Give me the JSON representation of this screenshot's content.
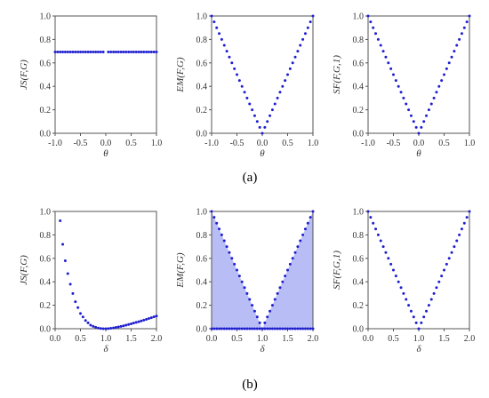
{
  "figure": {
    "subfigure_labels": [
      "(a)",
      "(b)"
    ]
  },
  "colors": {
    "points": "#1f1fd0",
    "fill": "#b9bdf5",
    "axis": "#555555"
  },
  "chart_data": [
    {
      "type": "scatter",
      "row": "a",
      "title": "",
      "xlabel": "θ",
      "ylabel": "JS(F,G)",
      "xlim": [
        -1.0,
        1.0
      ],
      "ylim": [
        0.0,
        1.0
      ],
      "xticks": [
        "-1.0",
        "-0.5",
        "0.0",
        "0.5",
        "1.0"
      ],
      "yticks": [
        "0.0",
        "0.2",
        "0.4",
        "0.6",
        "0.8",
        "1.0"
      ],
      "series": [
        {
          "x": [
            -1.0,
            -0.95,
            -0.9,
            -0.85,
            -0.8,
            -0.75,
            -0.7,
            -0.65,
            -0.6,
            -0.55,
            -0.5,
            -0.45,
            -0.4,
            -0.35,
            -0.3,
            -0.25,
            -0.2,
            -0.15,
            -0.1,
            -0.05,
            0.05,
            0.1,
            0.15,
            0.2,
            0.25,
            0.3,
            0.35,
            0.4,
            0.45,
            0.5,
            0.55,
            0.6,
            0.65,
            0.7,
            0.75,
            0.8,
            0.85,
            0.9,
            0.95,
            1.0
          ],
          "y": [
            0.693,
            0.693,
            0.693,
            0.693,
            0.693,
            0.693,
            0.693,
            0.693,
            0.693,
            0.693,
            0.693,
            0.693,
            0.693,
            0.693,
            0.693,
            0.693,
            0.693,
            0.693,
            0.693,
            0.693,
            0.693,
            0.693,
            0.693,
            0.693,
            0.693,
            0.693,
            0.693,
            0.693,
            0.693,
            0.693,
            0.693,
            0.693,
            0.693,
            0.693,
            0.693,
            0.693,
            0.693,
            0.693,
            0.693,
            0.693
          ]
        }
      ]
    },
    {
      "type": "scatter",
      "row": "a",
      "title": "",
      "xlabel": "θ",
      "ylabel": "EM(F,G)",
      "xlim": [
        -1.0,
        1.0
      ],
      "ylim": [
        0.0,
        1.0
      ],
      "xticks": [
        "-1.0",
        "-0.5",
        "0.0",
        "0.5",
        "1.0"
      ],
      "yticks": [
        "0.0",
        "0.2",
        "0.4",
        "0.6",
        "0.8",
        "1.0"
      ],
      "series": [
        {
          "x": [
            -1.0,
            -0.95,
            -0.9,
            -0.85,
            -0.8,
            -0.75,
            -0.7,
            -0.65,
            -0.6,
            -0.55,
            -0.5,
            -0.45,
            -0.4,
            -0.35,
            -0.3,
            -0.25,
            -0.2,
            -0.15,
            -0.1,
            -0.05,
            0.0,
            0.05,
            0.1,
            0.15,
            0.2,
            0.25,
            0.3,
            0.35,
            0.4,
            0.45,
            0.5,
            0.55,
            0.6,
            0.65,
            0.7,
            0.75,
            0.8,
            0.85,
            0.9,
            0.95,
            1.0
          ],
          "y": [
            1.0,
            0.95,
            0.9,
            0.85,
            0.8,
            0.75,
            0.7,
            0.65,
            0.6,
            0.55,
            0.5,
            0.45,
            0.4,
            0.35,
            0.3,
            0.25,
            0.2,
            0.15,
            0.1,
            0.05,
            0.0,
            0.05,
            0.1,
            0.15,
            0.2,
            0.25,
            0.3,
            0.35,
            0.4,
            0.45,
            0.5,
            0.55,
            0.6,
            0.65,
            0.7,
            0.75,
            0.8,
            0.85,
            0.9,
            0.95,
            1.0
          ]
        }
      ]
    },
    {
      "type": "scatter",
      "row": "a",
      "title": "",
      "xlabel": "θ",
      "ylabel": "SF(F,G,1)",
      "xlim": [
        -1.0,
        1.0
      ],
      "ylim": [
        0.0,
        1.0
      ],
      "xticks": [
        "-1.0",
        "-0.5",
        "0.0",
        "0.5",
        "1.0"
      ],
      "yticks": [
        "0.0",
        "0.2",
        "0.4",
        "0.6",
        "0.8",
        "1.0"
      ],
      "series": [
        {
          "x": [
            -1.0,
            -0.95,
            -0.9,
            -0.85,
            -0.8,
            -0.75,
            -0.7,
            -0.65,
            -0.6,
            -0.55,
            -0.5,
            -0.45,
            -0.4,
            -0.35,
            -0.3,
            -0.25,
            -0.2,
            -0.15,
            -0.1,
            -0.05,
            0.0,
            0.05,
            0.1,
            0.15,
            0.2,
            0.25,
            0.3,
            0.35,
            0.4,
            0.45,
            0.5,
            0.55,
            0.6,
            0.65,
            0.7,
            0.75,
            0.8,
            0.85,
            0.9,
            0.95,
            1.0
          ],
          "y": [
            1.0,
            0.95,
            0.9,
            0.85,
            0.8,
            0.75,
            0.7,
            0.65,
            0.6,
            0.55,
            0.5,
            0.45,
            0.4,
            0.35,
            0.3,
            0.25,
            0.2,
            0.15,
            0.1,
            0.05,
            0.0,
            0.05,
            0.1,
            0.15,
            0.2,
            0.25,
            0.3,
            0.35,
            0.4,
            0.45,
            0.5,
            0.55,
            0.6,
            0.65,
            0.7,
            0.75,
            0.8,
            0.85,
            0.9,
            0.95,
            1.0
          ]
        }
      ]
    },
    {
      "type": "scatter",
      "row": "b",
      "title": "",
      "xlabel": "δ",
      "ylabel": "JS(F,G)",
      "xlim": [
        0.0,
        2.0
      ],
      "ylim": [
        0.0,
        1.0
      ],
      "xticks": [
        "0.0",
        "0.5",
        "1.0",
        "1.5",
        "2.0"
      ],
      "yticks": [
        "0.0",
        "0.2",
        "0.4",
        "0.6",
        "0.8",
        "1.0"
      ],
      "series": [
        {
          "x": [
            0.1,
            0.15,
            0.2,
            0.25,
            0.3,
            0.35,
            0.4,
            0.45,
            0.5,
            0.55,
            0.6,
            0.65,
            0.7,
            0.75,
            0.8,
            0.85,
            0.9,
            0.95,
            1.0,
            1.05,
            1.1,
            1.15,
            1.2,
            1.25,
            1.3,
            1.35,
            1.4,
            1.45,
            1.5,
            1.55,
            1.6,
            1.65,
            1.7,
            1.75,
            1.8,
            1.85,
            1.9,
            1.95,
            2.0
          ],
          "y": [
            0.92,
            0.72,
            0.58,
            0.47,
            0.38,
            0.3,
            0.23,
            0.18,
            0.13,
            0.1,
            0.07,
            0.05,
            0.03,
            0.02,
            0.012,
            0.006,
            0.002,
            0.0,
            0.0,
            0.001,
            0.004,
            0.007,
            0.011,
            0.015,
            0.02,
            0.025,
            0.03,
            0.036,
            0.042,
            0.048,
            0.054,
            0.06,
            0.066,
            0.073,
            0.08,
            0.087,
            0.094,
            0.101,
            0.108
          ]
        }
      ]
    },
    {
      "type": "area",
      "row": "b",
      "title": "",
      "xlabel": "δ",
      "ylabel": "EM(F,G)",
      "xlim": [
        0.0,
        2.0
      ],
      "ylim": [
        0.0,
        1.0
      ],
      "xticks": [
        "0.0",
        "0.5",
        "1.0",
        "1.5",
        "2.0"
      ],
      "yticks": [
        "0.0",
        "0.2",
        "0.4",
        "0.6",
        "0.8",
        "1.0"
      ],
      "series": [
        {
          "x": [
            0.0,
            0.05,
            0.1,
            0.15,
            0.2,
            0.25,
            0.3,
            0.35,
            0.4,
            0.45,
            0.5,
            0.55,
            0.6,
            0.65,
            0.7,
            0.75,
            0.8,
            0.85,
            0.9,
            0.95,
            1.0,
            1.05,
            1.1,
            1.15,
            1.2,
            1.25,
            1.3,
            1.35,
            1.4,
            1.45,
            1.5,
            1.55,
            1.6,
            1.65,
            1.7,
            1.75,
            1.8,
            1.85,
            1.9,
            1.95,
            2.0
          ],
          "y": [
            1.0,
            0.95,
            0.9,
            0.85,
            0.8,
            0.75,
            0.7,
            0.65,
            0.6,
            0.55,
            0.5,
            0.45,
            0.4,
            0.35,
            0.3,
            0.25,
            0.2,
            0.15,
            0.1,
            0.05,
            0.0,
            0.05,
            0.1,
            0.15,
            0.2,
            0.25,
            0.3,
            0.35,
            0.4,
            0.45,
            0.5,
            0.55,
            0.6,
            0.65,
            0.7,
            0.75,
            0.8,
            0.85,
            0.9,
            0.95,
            1.0
          ]
        }
      ],
      "baseline_points": true
    },
    {
      "type": "scatter",
      "row": "b",
      "title": "",
      "xlabel": "δ",
      "ylabel": "SF(F,G,1)",
      "xlim": [
        0.0,
        2.0
      ],
      "ylim": [
        0.0,
        1.0
      ],
      "xticks": [
        "0.0",
        "0.5",
        "1.0",
        "1.5",
        "2.0"
      ],
      "yticks": [
        "0.0",
        "0.2",
        "0.4",
        "0.6",
        "0.8",
        "1.0"
      ],
      "series": [
        {
          "x": [
            0.0,
            0.05,
            0.1,
            0.15,
            0.2,
            0.25,
            0.3,
            0.35,
            0.4,
            0.45,
            0.5,
            0.55,
            0.6,
            0.65,
            0.7,
            0.75,
            0.8,
            0.85,
            0.9,
            0.95,
            1.0,
            1.05,
            1.1,
            1.15,
            1.2,
            1.25,
            1.3,
            1.35,
            1.4,
            1.45,
            1.5,
            1.55,
            1.6,
            1.65,
            1.7,
            1.75,
            1.8,
            1.85,
            1.9,
            1.95,
            2.0
          ],
          "y": [
            1.0,
            0.95,
            0.9,
            0.85,
            0.8,
            0.75,
            0.7,
            0.65,
            0.6,
            0.55,
            0.5,
            0.45,
            0.4,
            0.35,
            0.3,
            0.25,
            0.2,
            0.15,
            0.1,
            0.05,
            0.0,
            0.05,
            0.1,
            0.15,
            0.2,
            0.25,
            0.3,
            0.35,
            0.4,
            0.45,
            0.5,
            0.55,
            0.6,
            0.65,
            0.7,
            0.75,
            0.8,
            0.85,
            0.9,
            0.95,
            1.0
          ]
        }
      ]
    }
  ]
}
